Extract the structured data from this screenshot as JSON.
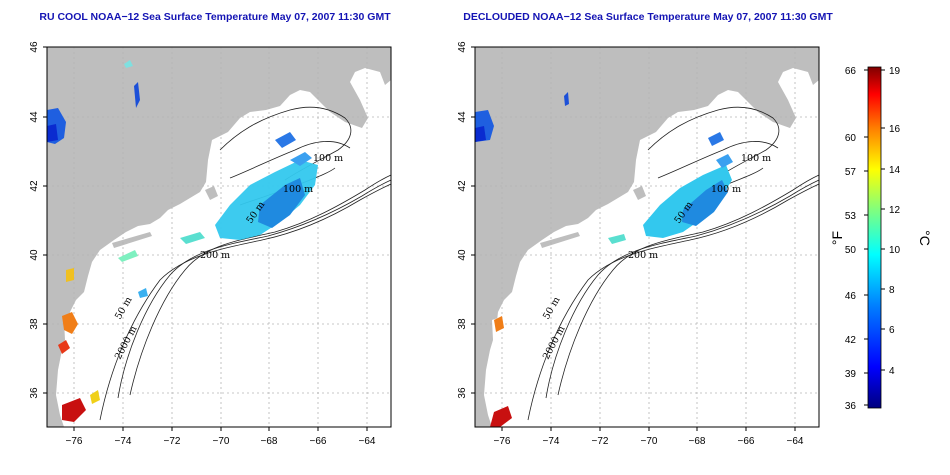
{
  "panels": [
    {
      "id": "left",
      "title": "RU COOL NOAA−12 Sea Surface Temperature May 07, 2007 11:30 GMT"
    },
    {
      "id": "right",
      "title": "DECLOUDED NOAA−12 Sea Surface Temperature May 07, 2007 11:30 GMT"
    }
  ],
  "map_axes": {
    "lon_ticks": [
      "−76",
      "−74",
      "−72",
      "−70",
      "−68",
      "−66",
      "−64"
    ],
    "lat_ticks": [
      "46",
      "44",
      "42",
      "40",
      "38",
      "36"
    ],
    "lon_range": [
      -77.1,
      -62.9
    ],
    "lat_range": [
      35.0,
      46.0
    ],
    "grid": "dotted"
  },
  "contour_labels": [
    "100 m",
    "100 m",
    "50 m",
    "200 m",
    "50 m",
    "2000 m"
  ],
  "colorbar": {
    "fahrenheit_ticks": [
      "66",
      "60",
      "57",
      "53",
      "50",
      "46",
      "42",
      "39",
      "36"
    ],
    "celsius_ticks": [
      "19",
      "16",
      "14",
      "12",
      "10",
      "8",
      "6",
      "4"
    ],
    "fahrenheit_label": "°F",
    "celsius_label": "°C",
    "range_c": [
      2,
      19
    ],
    "colors": [
      "#00007f",
      "#0000ff",
      "#007fff",
      "#00ffff",
      "#7fff7f",
      "#ffff00",
      "#ff7f00",
      "#ff0000",
      "#7f0000"
    ]
  },
  "colors": {
    "land": "#bebebe",
    "ocean": "#ffffff",
    "title": "#1414b4"
  }
}
